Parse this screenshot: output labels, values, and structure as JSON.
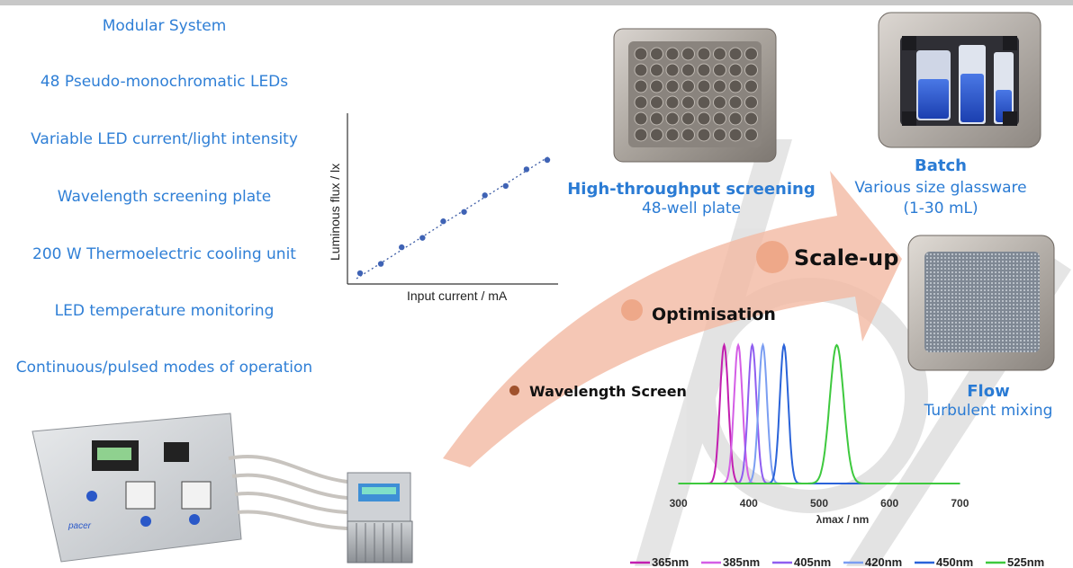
{
  "features": [
    "Modular System",
    "48 Pseudo-monochromatic LEDs",
    "Variable LED current/light intensity",
    "Wavelength screening plate",
    "200 W Thermoelectric cooling unit",
    "LED temperature monitoring",
    "Continuous/pulsed modes of operation"
  ],
  "inset_chart": {
    "xlabel": "Input current / mA",
    "ylabel": "Luminous flux / lx"
  },
  "stages": {
    "wavelength_screen": "Wavelength Screen",
    "optimisation": "Optimisation",
    "scale_up": "Scale-up"
  },
  "hts": {
    "title": "High-throughput screening",
    "subtitle": "48-well plate"
  },
  "batch": {
    "title": "Batch",
    "line1": "Various size glassware",
    "line2": "(1-30 mL)"
  },
  "flow": {
    "title": "Flow",
    "subtitle": "Turbulent mixing"
  },
  "device_brand": "pacer",
  "chart_data": {
    "type": "line",
    "xlabel": "λmax / nm",
    "x_ticks": [
      300,
      400,
      500,
      600,
      700
    ],
    "xlim": [
      280,
      720
    ],
    "series": [
      {
        "name": "365nm",
        "peak": 365,
        "color": "#c21fb0"
      },
      {
        "name": "385nm",
        "peak": 385,
        "color": "#d45ee6"
      },
      {
        "name": "405nm",
        "peak": 405,
        "color": "#8f5ef0"
      },
      {
        "name": "420nm",
        "peak": 420,
        "color": "#7b9ef2"
      },
      {
        "name": "450nm",
        "peak": 450,
        "color": "#2a63d9"
      },
      {
        "name": "525nm",
        "peak": 525,
        "color": "#3ec93e"
      }
    ]
  }
}
